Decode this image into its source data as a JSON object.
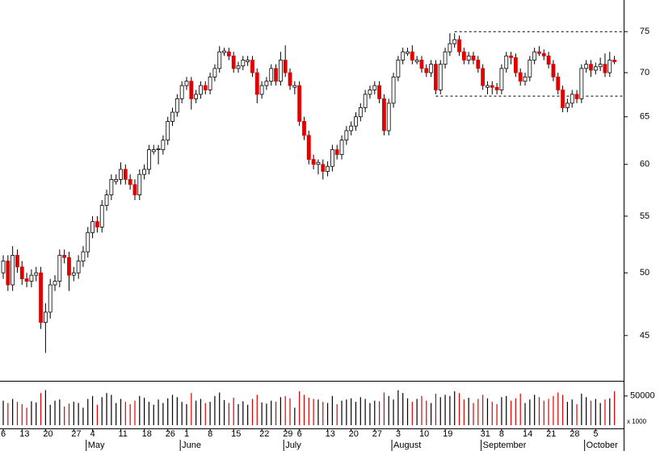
{
  "chart_data": {
    "type": "candlestick",
    "log_scale": true,
    "ylim": [
      41.7,
      79.1
    ],
    "yticks": [
      45,
      50,
      55,
      60,
      65,
      70,
      75
    ],
    "up_color": "#ffffff",
    "down_color": "#e00000",
    "volume_ylim": [
      0,
      76000
    ],
    "volume_yticks": [
      50000
    ],
    "volume_unit": "x 1000",
    "categories": [
      "6",
      null,
      null,
      null,
      "13",
      null,
      null,
      null,
      null,
      "20",
      null,
      null,
      null,
      null,
      null,
      "27",
      null,
      null,
      null,
      "4",
      null,
      null,
      null,
      null,
      null,
      "11",
      null,
      null,
      null,
      null,
      "18",
      null,
      null,
      null,
      null,
      "26",
      null,
      null,
      null,
      "1",
      null,
      null,
      null,
      null,
      "8",
      null,
      null,
      null,
      null,
      "15",
      null,
      null,
      null,
      null,
      null,
      "22",
      null,
      null,
      null,
      null,
      "29",
      null,
      null,
      "6",
      null,
      null,
      null,
      null,
      null,
      "13",
      null,
      null,
      null,
      null,
      "20",
      null,
      null,
      null,
      null,
      "27",
      null,
      null,
      null,
      null,
      "3",
      null,
      null,
      null,
      null,
      "10",
      null,
      null,
      null,
      null,
      "19",
      null,
      null,
      null,
      null,
      null,
      null,
      null,
      "31",
      null,
      null,
      null,
      "8",
      null,
      null,
      null,
      null,
      "14",
      null,
      null,
      null,
      null,
      "21",
      null,
      null,
      null,
      null,
      "28",
      null,
      null,
      null,
      null,
      "5",
      null,
      null,
      null,
      null
    ],
    "months": [
      {
        "label": "May",
        "index": 18
      },
      {
        "label": "June",
        "index": 38
      },
      {
        "label": "July",
        "index": 60
      },
      {
        "label": "August",
        "index": 83
      },
      {
        "label": "September",
        "index": 102
      },
      {
        "label": "October",
        "index": 124
      }
    ],
    "lines": [
      {
        "value": 75,
        "from": 96
      },
      {
        "value": 67.3,
        "from": 92
      }
    ],
    "ohlc": [
      [
        50,
        51.5,
        49.5,
        51
      ],
      [
        51,
        51.5,
        48.5,
        49
      ],
      [
        49,
        52.3,
        48.5,
        51.5
      ],
      [
        51.5,
        52,
        50,
        50.5
      ],
      [
        50.5,
        51,
        49,
        49.5
      ],
      [
        49.5,
        50,
        48.8,
        49.3
      ],
      [
        49.3,
        50.3,
        48.8,
        49.8
      ],
      [
        49.8,
        50.5,
        49.3,
        50
      ],
      [
        50,
        50.5,
        45.5,
        46
      ],
      [
        46,
        47.5,
        43.7,
        46.8
      ],
      [
        46.8,
        49.5,
        46.3,
        49
      ],
      [
        49,
        49.8,
        48.5,
        49.3
      ],
      [
        49.3,
        52,
        48.8,
        51.5
      ],
      [
        51.5,
        52,
        50.8,
        51.3
      ],
      [
        51.3,
        51.8,
        48.5,
        49.8
      ],
      [
        49.8,
        50.5,
        49.3,
        50
      ],
      [
        50,
        51.5,
        49.5,
        51
      ],
      [
        51,
        52.3,
        50.5,
        51.8
      ],
      [
        51.8,
        54,
        51.3,
        53.5
      ],
      [
        53.5,
        55,
        53,
        54.5
      ],
      [
        54.5,
        55,
        53.5,
        54
      ],
      [
        54,
        56.5,
        53.5,
        56
      ],
      [
        56,
        57.5,
        55.5,
        57
      ],
      [
        57,
        59,
        56.5,
        58.5
      ],
      [
        58.3,
        59,
        58,
        58.5
      ],
      [
        58.5,
        60.2,
        58,
        59.5
      ],
      [
        59.5,
        60,
        58,
        58.5
      ],
      [
        58.5,
        59,
        57.5,
        58
      ],
      [
        58,
        58.5,
        56.5,
        57
      ],
      [
        57,
        59.5,
        56.5,
        59
      ],
      [
        59,
        60,
        58.5,
        59.5
      ],
      [
        59.5,
        62,
        59,
        61.5
      ],
      [
        61.3,
        62,
        61,
        61.5
      ],
      [
        61.5,
        62,
        60,
        61.6
      ],
      [
        61.5,
        63,
        61,
        62.5
      ],
      [
        62.5,
        65,
        62,
        64.5
      ],
      [
        64.5,
        66,
        64,
        65.5
      ],
      [
        65.5,
        67.5,
        65,
        67
      ],
      [
        67,
        69,
        66.5,
        68.5
      ],
      [
        68.5,
        69.5,
        68,
        69
      ],
      [
        69,
        69.5,
        65.8,
        67
      ],
      [
        67,
        68,
        66.5,
        67.5
      ],
      [
        67.5,
        69,
        67,
        68.5
      ],
      [
        68.5,
        69,
        67.5,
        68
      ],
      [
        68,
        70,
        67.5,
        69.5
      ],
      [
        69.5,
        71,
        69,
        70.5
      ],
      [
        70.5,
        73.2,
        70,
        72.5
      ],
      [
        72.4,
        73,
        72,
        72.6
      ],
      [
        72.5,
        73,
        71.5,
        72
      ],
      [
        72,
        72.5,
        70,
        70.5
      ],
      [
        70.5,
        71.3,
        70,
        70.8
      ],
      [
        70.8,
        72,
        70.3,
        71.5
      ],
      [
        71.3,
        72,
        70.8,
        71.5
      ],
      [
        71.5,
        72,
        69.5,
        70
      ],
      [
        70,
        70.5,
        66.5,
        67.5
      ],
      [
        67.5,
        69,
        67,
        68.5
      ],
      [
        68.5,
        69.5,
        68,
        69
      ],
      [
        69,
        71,
        68.5,
        70.5
      ],
      [
        70.5,
        71,
        68.5,
        69
      ],
      [
        69,
        72.5,
        68.5,
        71.5
      ],
      [
        71.5,
        73.3,
        69.5,
        70
      ],
      [
        70,
        70.5,
        68,
        68.5
      ],
      [
        68.3,
        69,
        67.5,
        68.5
      ],
      [
        68.5,
        69,
        64,
        64.5
      ],
      [
        64.5,
        65,
        62.5,
        63
      ],
      [
        63,
        63.5,
        60,
        60.5
      ],
      [
        60.5,
        61,
        59.5,
        60
      ],
      [
        60,
        60.5,
        59,
        60.2
      ],
      [
        60,
        60.5,
        58.5,
        59.3
      ],
      [
        59.3,
        60.3,
        58.8,
        59.8
      ],
      [
        59.8,
        62,
        59.3,
        61.5
      ],
      [
        61.5,
        62,
        60.5,
        61
      ],
      [
        61,
        63,
        60.5,
        62.5
      ],
      [
        62.5,
        64,
        62,
        63.5
      ],
      [
        63.5,
        64.5,
        63,
        64
      ],
      [
        64,
        65.5,
        63.5,
        65
      ],
      [
        65,
        66.5,
        64.5,
        66
      ],
      [
        66,
        68,
        65.5,
        67.5
      ],
      [
        67.5,
        68.5,
        67,
        68
      ],
      [
        68,
        69,
        67.5,
        68.5
      ],
      [
        68.5,
        69,
        66.5,
        67
      ],
      [
        67,
        67.5,
        63,
        63.5
      ],
      [
        63.5,
        67,
        63,
        66.5
      ],
      [
        66.5,
        70,
        66,
        69.5
      ],
      [
        69.5,
        72,
        69,
        71.5
      ],
      [
        71.5,
        73,
        71,
        72.5
      ],
      [
        72.3,
        73,
        72,
        72.5
      ],
      [
        72.5,
        73.3,
        71,
        71.5
      ],
      [
        71.3,
        72,
        71,
        71.5
      ],
      [
        71.5,
        72,
        70,
        70.5
      ],
      [
        70.5,
        71,
        69.5,
        70
      ],
      [
        70,
        71.5,
        69.5,
        71
      ],
      [
        71,
        71.5,
        67.5,
        68
      ],
      [
        68,
        71.5,
        67.5,
        71
      ],
      [
        71,
        73,
        70.5,
        72.5
      ],
      [
        72.5,
        74.8,
        72,
        73.5
      ],
      [
        73.5,
        74.8,
        73,
        74
      ],
      [
        74,
        74.5,
        72,
        72.5
      ],
      [
        72.5,
        73,
        71,
        71.5
      ],
      [
        71.5,
        72.5,
        71,
        72
      ],
      [
        72,
        72.5,
        71,
        71.5
      ],
      [
        71.5,
        72,
        70,
        70.5
      ],
      [
        70.5,
        71,
        68,
        68.5
      ],
      [
        68.3,
        69,
        67.5,
        68.5
      ],
      [
        68.5,
        69,
        67.5,
        68.3
      ],
      [
        68.3,
        68.8,
        67.5,
        68
      ],
      [
        68,
        71,
        67.5,
        70.5
      ],
      [
        70.5,
        72.5,
        70,
        72
      ],
      [
        72,
        72.5,
        71,
        71.8
      ],
      [
        71.8,
        72.3,
        69.5,
        70
      ],
      [
        70,
        70.5,
        68.5,
        69
      ],
      [
        69,
        70,
        68.5,
        69.5
      ],
      [
        69.5,
        72,
        69,
        71.5
      ],
      [
        71.5,
        73,
        71,
        72.5
      ],
      [
        72.5,
        73.2,
        72,
        72.3
      ],
      [
        72.3,
        72.8,
        71.5,
        72
      ],
      [
        72,
        72.5,
        70.5,
        71
      ],
      [
        71,
        71.5,
        69,
        69.5
      ],
      [
        69.5,
        70,
        67.5,
        68
      ],
      [
        68,
        68.5,
        65.5,
        66
      ],
      [
        66,
        67,
        65.5,
        66.5
      ],
      [
        66.5,
        68,
        66,
        67.5
      ],
      [
        67.5,
        68,
        66.5,
        67
      ],
      [
        67,
        71,
        66.5,
        70.5
      ],
      [
        70.5,
        71.5,
        70,
        71
      ],
      [
        71,
        71.5,
        69.5,
        70.3
      ],
      [
        70.3,
        71.2,
        69.8,
        70.7
      ],
      [
        70.7,
        71.8,
        70.2,
        71
      ],
      [
        71,
        72.3,
        69.5,
        70
      ],
      [
        70,
        72.5,
        69.5,
        71.5
      ],
      [
        71.5,
        72,
        71,
        71.3
      ]
    ],
    "volume": [
      42000,
      38000,
      45000,
      40000,
      36000,
      30000,
      41000,
      39000,
      55000,
      60000,
      35000,
      42000,
      44000,
      32000,
      37000,
      40000,
      38000,
      30000,
      45000,
      50000,
      35000,
      48000,
      55000,
      52000,
      38000,
      45000,
      40000,
      36000,
      42000,
      50000,
      47000,
      40000,
      35000,
      44000,
      38000,
      46000,
      52000,
      48000,
      40000,
      36000,
      55000,
      42000,
      45000,
      38000,
      40000,
      50000,
      56000,
      43000,
      38000,
      47000,
      36000,
      41000,
      35000,
      45000,
      52000,
      39000,
      37000,
      42000,
      40000,
      48000,
      50000,
      46000,
      30000,
      58000,
      52000,
      47000,
      45000,
      44000,
      40000,
      38000,
      50000,
      36000,
      42000,
      44000,
      46000,
      40000,
      48000,
      45000,
      38000,
      42000,
      41000,
      56000,
      50000,
      44000,
      60000,
      55000,
      46000,
      40000,
      45000,
      50000,
      42000,
      38000,
      54000,
      48000,
      52000,
      50000,
      58000,
      55000,
      44000,
      47000,
      38000,
      45000,
      52000,
      46000,
      40000,
      36000,
      48000,
      50000,
      42000,
      46000,
      54000,
      38000,
      44000,
      52000,
      48000,
      42000,
      45000,
      50000,
      56000,
      52000,
      40000,
      44000,
      36000,
      54000,
      48000,
      42000,
      45000,
      38000,
      44000,
      46000,
      58000
    ]
  }
}
